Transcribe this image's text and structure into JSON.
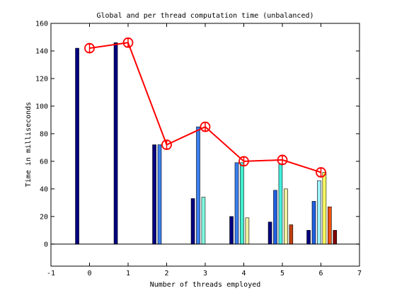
{
  "chart_data": {
    "type": "bar",
    "title": "Global and per thread computation time (unbalanced)",
    "xlabel": "Number of threads employed",
    "ylabel": "Time in milliseconds",
    "xlim": [
      -1,
      7
    ],
    "ylim": [
      -16,
      160
    ],
    "xticks": [
      -1,
      0,
      1,
      2,
      3,
      4,
      5,
      6,
      7
    ],
    "yticks": [
      0,
      20,
      40,
      60,
      80,
      100,
      120,
      140,
      160
    ],
    "grid": false,
    "legend": null,
    "baseline": 0,
    "bar_groups": [
      {
        "x": 0,
        "values": [
          142
        ]
      },
      {
        "x": 1,
        "values": [
          146
        ]
      },
      {
        "x": 2,
        "values": [
          72,
          72
        ]
      },
      {
        "x": 3,
        "values": [
          33,
          85,
          34
        ]
      },
      {
        "x": 4,
        "values": [
          20,
          59,
          59,
          19
        ]
      },
      {
        "x": 5,
        "values": [
          16,
          39,
          58,
          40,
          14
        ]
      },
      {
        "x": 6,
        "values": [
          10,
          31,
          46,
          52,
          27,
          10
        ]
      }
    ],
    "bar_colors": {
      "1": [
        "#000080"
      ],
      "2": [
        "#000080",
        "#3a7ff0"
      ],
      "3": [
        "#000080",
        "#3a7ff0",
        "#80ffe0"
      ],
      "4": [
        "#000080",
        "#3a7ff0",
        "#40f0d0",
        "#f0f0a0"
      ],
      "5": [
        "#000080",
        "#2060e0",
        "#40f0e0",
        "#f0f0a0",
        "#c04010"
      ],
      "6": [
        "#000080",
        "#2060e0",
        "#a0f0ff",
        "#ffff60",
        "#f05010",
        "#800000"
      ]
    },
    "series": [
      {
        "type": "line",
        "color": "#ff0000",
        "marker": "circle-errorbar",
        "x": [
          0,
          1,
          2,
          3,
          4,
          5,
          6
        ],
        "y": [
          142,
          146,
          72,
          85,
          60,
          61,
          52
        ],
        "err": [
          3,
          3,
          3,
          3,
          3,
          3,
          3
        ]
      }
    ]
  }
}
